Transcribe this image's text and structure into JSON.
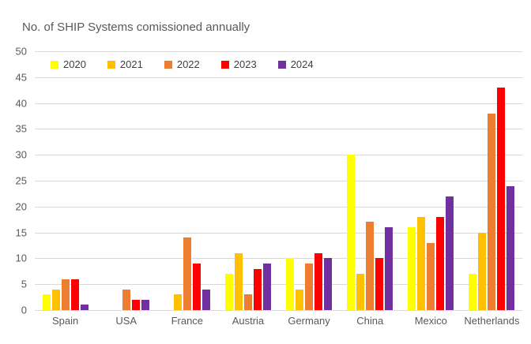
{
  "chart_data": {
    "type": "bar",
    "title": "No. of SHIP Systems comissioned annually",
    "categories": [
      "Spain",
      "USA",
      "France",
      "Austria",
      "Germany",
      "China",
      "Mexico",
      "Netherlands"
    ],
    "series": [
      {
        "name": "2020",
        "color": "#FFFF00",
        "values": [
          3,
          0,
          0,
          7,
          10,
          30,
          16,
          7
        ]
      },
      {
        "name": "2021",
        "color": "#FFC000",
        "values": [
          4,
          0,
          3,
          11,
          4,
          7,
          18,
          15
        ]
      },
      {
        "name": "2022",
        "color": "#ED7D31",
        "values": [
          6,
          4,
          14,
          3,
          9,
          17,
          13,
          38
        ]
      },
      {
        "name": "2023",
        "color": "#FF0000",
        "values": [
          6,
          2,
          9,
          8,
          11,
          10,
          18,
          43
        ]
      },
      {
        "name": "2024",
        "color": "#7030A0",
        "values": [
          1,
          2,
          4,
          9,
          10,
          16,
          22,
          24
        ]
      }
    ],
    "xlabel": "",
    "ylabel": "",
    "ylim": [
      0,
      50
    ],
    "yticks": [
      0,
      5,
      10,
      15,
      20,
      25,
      30,
      35,
      40,
      45,
      50
    ],
    "grid": "horizontal",
    "legend_position": "top-left-inside",
    "colors": {
      "axis_text": "#595959",
      "legend_text": "#404040",
      "gridline": "#D9D9D9",
      "background": "#FFFFFF"
    }
  }
}
